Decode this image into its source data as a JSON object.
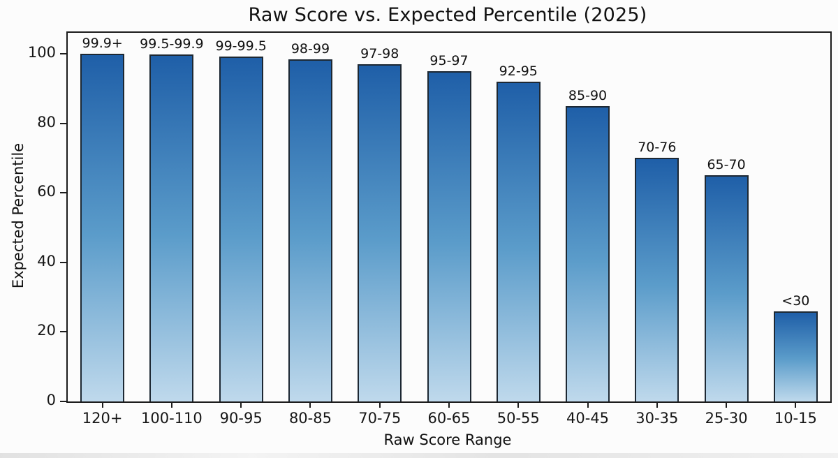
{
  "figure": {
    "background": "#fcfcfc"
  },
  "chart_data": {
    "type": "bar",
    "title": "Raw Score vs. Expected Percentile (2025)",
    "xlabel": "Raw Score Range",
    "ylabel": "Expected Percentile",
    "categories": [
      "120+",
      "100-110",
      "90-95",
      "80-85",
      "70-75",
      "60-65",
      "50-55",
      "40-45",
      "30-35",
      "25-30",
      "10-15"
    ],
    "values": [
      100,
      99.7,
      99.2,
      98.4,
      97,
      95,
      92,
      85,
      70,
      65,
      26
    ],
    "bar_labels": [
      "99.9+",
      "99.5-99.9",
      "99-99.5",
      "98-99",
      "97-98",
      "95-97",
      "92-95",
      "85-90",
      "70-76",
      "65-70",
      "<30"
    ],
    "yticks": [
      0,
      20,
      40,
      60,
      80,
      100
    ],
    "ylim": [
      0,
      106
    ],
    "grid": false,
    "legend": null,
    "colors": {
      "bar_gradient_top": "#1f5fa8",
      "bar_gradient_mid": "#5b9cca",
      "bar_gradient_bottom": "#bfd9ec",
      "bar_border": "#1d2833",
      "axis": "#1c1c1c",
      "text": "#111111"
    }
  }
}
